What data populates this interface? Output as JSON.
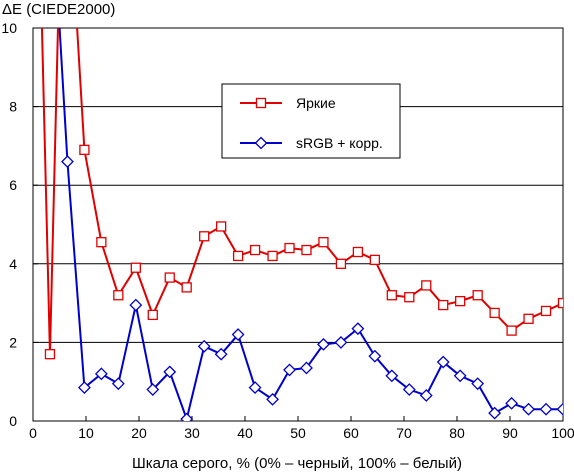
{
  "chart_data": {
    "type": "line",
    "ylabel": "ΔE (CIEDE2000)",
    "xlabel": "Шкала серого, % (0% – черный, 100% – белый)",
    "xlim": [
      0,
      100
    ],
    "ylim": [
      0,
      10
    ],
    "xticks": [
      0,
      10,
      20,
      30,
      40,
      50,
      60,
      70,
      80,
      90,
      100
    ],
    "yticks": [
      0,
      2,
      4,
      6,
      8,
      10
    ],
    "grid": "horizontal",
    "legend_position": "upper-center",
    "series": [
      {
        "name": "Яркие",
        "color": "#e00000",
        "marker": "square",
        "x": [
          1.6,
          3.2,
          4.8,
          6.5,
          8.1,
          9.7,
          12.9,
          16.1,
          19.4,
          22.6,
          25.8,
          29.0,
          32.3,
          35.5,
          38.7,
          41.9,
          45.2,
          48.4,
          51.6,
          54.8,
          58.1,
          61.3,
          64.5,
          67.7,
          71.0,
          74.2,
          77.4,
          80.6,
          83.9,
          87.1,
          90.3,
          93.5,
          96.8,
          100.0
        ],
        "y": [
          10.5,
          1.7,
          10.5,
          10.5,
          10.5,
          6.9,
          4.55,
          3.2,
          3.9,
          2.7,
          3.65,
          3.4,
          4.7,
          4.95,
          4.2,
          4.35,
          4.2,
          4.4,
          4.35,
          4.55,
          4.0,
          4.3,
          4.1,
          3.2,
          3.15,
          3.45,
          2.95,
          3.05,
          3.2,
          2.75,
          2.3,
          2.6,
          2.8,
          3.0
        ]
      },
      {
        "name": "sRGB + корр.",
        "color": "#0000cc",
        "marker": "diamond",
        "x": [
          4.8,
          6.5,
          9.7,
          12.9,
          16.1,
          19.4,
          22.6,
          25.8,
          29.0,
          32.3,
          35.5,
          38.7,
          41.9,
          45.2,
          48.4,
          51.6,
          54.8,
          58.1,
          61.3,
          64.5,
          67.7,
          71.0,
          74.2,
          77.4,
          80.6,
          83.9,
          87.1,
          90.3,
          93.5,
          96.8,
          100.0
        ],
        "y": [
          10.5,
          6.6,
          0.85,
          1.2,
          0.95,
          2.95,
          0.8,
          1.25,
          0.05,
          1.9,
          1.7,
          2.2,
          0.85,
          0.55,
          1.3,
          1.35,
          1.95,
          2.0,
          2.35,
          1.65,
          1.15,
          0.8,
          0.65,
          1.5,
          1.15,
          0.95,
          0.2,
          0.45,
          0.3,
          0.3,
          0.3
        ]
      }
    ]
  }
}
